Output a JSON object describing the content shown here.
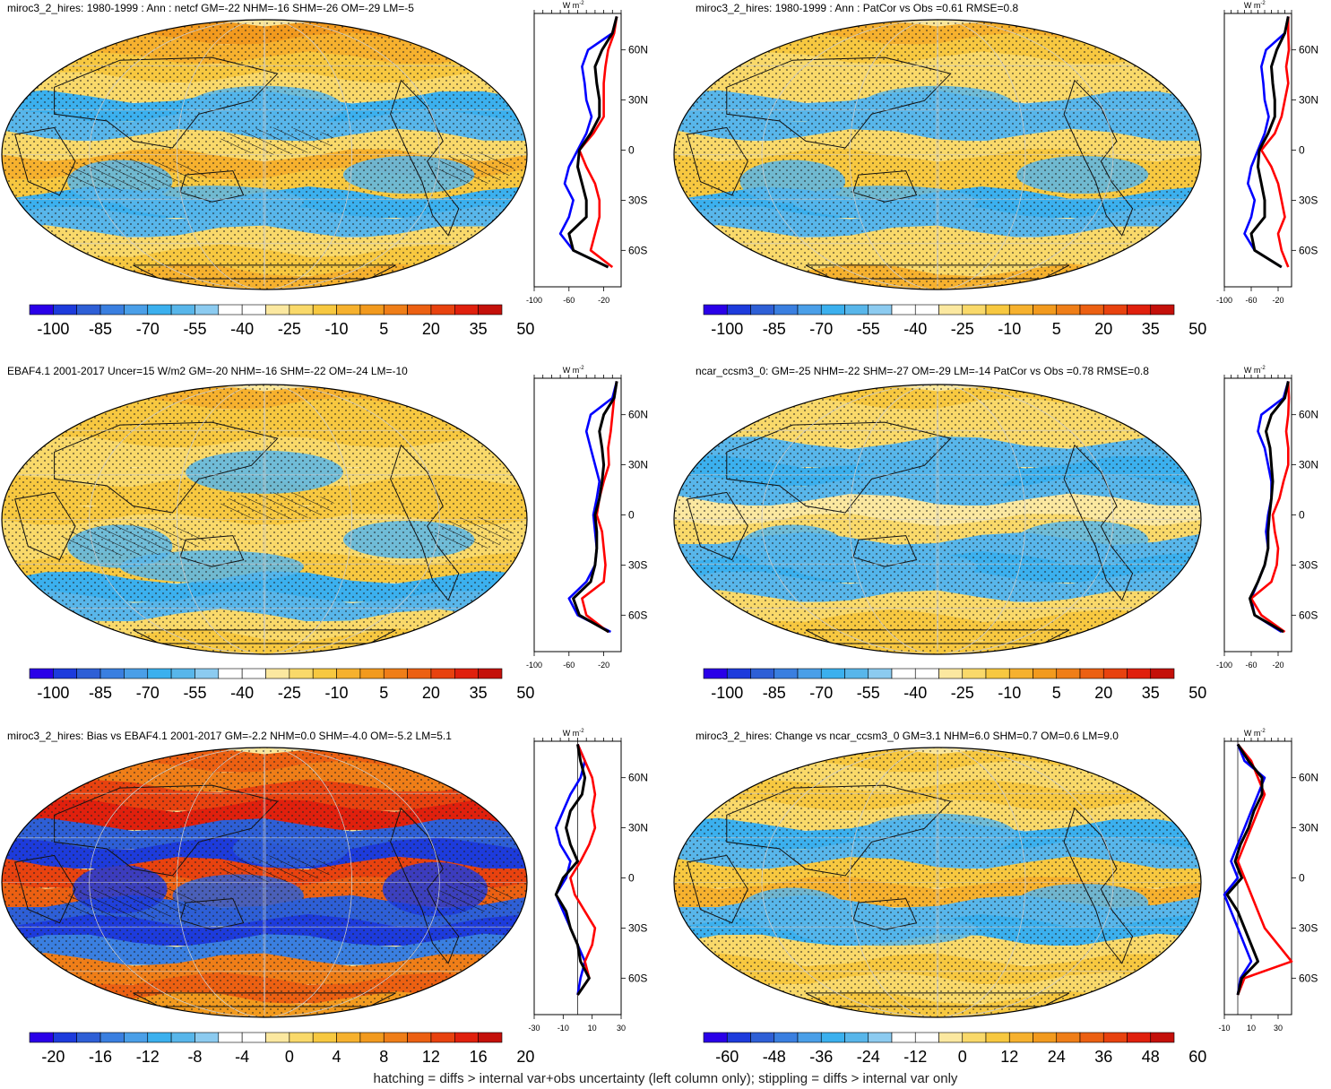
{
  "footer": "hatching = diffs > internal var+obs uncertainty (left column only); stippling = diffs > internal var only",
  "colors": {
    "scale": [
      "#2a00e8",
      "#1d3bdc",
      "#2e5fd6",
      "#3a7fe0",
      "#4a9fe8",
      "#3bb0ee",
      "#58b6ea",
      "#8ccbf0",
      "#ffffff",
      "#ffffff",
      "#fbe8a0",
      "#f9d96a",
      "#f7c840",
      "#f6b12e",
      "#f29a1e",
      "#ef7e18",
      "#ec6012",
      "#e8420f",
      "#e0200d",
      "#c4100a"
    ],
    "zonal_lines": {
      "model": "#ff0000",
      "obs": "#0000ff",
      "diff": "#000000"
    }
  },
  "chart_data": [
    {
      "type": "map_with_zonal_profile",
      "title": "miroc3_2_hires: 1980-1999 : Ann : netcf GM=-22 NHM=-16 SHM=-26 OM=-29 LM=-5",
      "colorbar_labels": [
        "-100",
        "-85",
        "-70",
        "-55",
        "-40",
        "-25",
        "-10",
        "5",
        "20",
        "35",
        "50"
      ],
      "zonal_units": "W m",
      "zonal_units_exp": "-2",
      "zonal_xlim": [
        -100,
        0
      ],
      "zonal_ticks": [
        "-100",
        "-60",
        "-20"
      ],
      "zonal_tick_values": [
        -100,
        -60,
        -20
      ],
      "lat_labels": [
        "60N",
        "30N",
        "0",
        "30S",
        "60S"
      ],
      "lat_values": [
        60,
        30,
        0,
        -30,
        -60
      ],
      "zonal": {
        "lat": [
          80,
          70,
          60,
          50,
          40,
          30,
          20,
          10,
          0,
          -10,
          -20,
          -30,
          -40,
          -50,
          -60,
          -70
        ],
        "model": [
          -5,
          -8,
          -15,
          -18,
          -20,
          -20,
          -20,
          -32,
          -48,
          -40,
          -30,
          -25,
          -25,
          -30,
          -35,
          -10
        ],
        "obs": [
          -5,
          -10,
          -38,
          -45,
          -42,
          -40,
          -34,
          -40,
          -50,
          -60,
          -65,
          -55,
          -60,
          -70,
          -55,
          -15
        ],
        "diff": [
          -5,
          -10,
          -22,
          -30,
          -28,
          -25,
          -25,
          -35,
          -48,
          -50,
          -45,
          -40,
          -40,
          -60,
          -55,
          -15
        ]
      }
    },
    {
      "type": "map_with_zonal_profile",
      "title": "miroc3_2_hires: 1980-1999 : Ann : PatCor vs Obs =0.61 RMSE=0.8",
      "colorbar_labels": [
        "-100",
        "-85",
        "-70",
        "-55",
        "-40",
        "-25",
        "-10",
        "5",
        "20",
        "35",
        "50"
      ],
      "zonal_units": "W m",
      "zonal_units_exp": "-2",
      "zonal_xlim": [
        -100,
        0
      ],
      "zonal_ticks": [
        "-100",
        "-60",
        "-20"
      ],
      "zonal_tick_values": [
        -100,
        -60,
        -20
      ],
      "lat_labels": [
        "60N",
        "30N",
        "0",
        "30S",
        "60S"
      ],
      "lat_values": [
        60,
        30,
        0,
        -30,
        -60
      ],
      "zonal": {
        "lat": [
          80,
          70,
          60,
          50,
          40,
          30,
          20,
          10,
          0,
          -10,
          -20,
          -30,
          -40,
          -50,
          -60,
          -70
        ],
        "model": [
          -5,
          -5,
          -4,
          -8,
          -5,
          -10,
          -15,
          -25,
          -45,
          -30,
          -20,
          -15,
          -10,
          -20,
          -15,
          -5
        ],
        "obs": [
          -5,
          -10,
          -38,
          -45,
          -42,
          -40,
          -34,
          -40,
          -50,
          -60,
          -65,
          -55,
          -60,
          -70,
          -55,
          -15
        ],
        "diff": [
          -5,
          -10,
          -22,
          -30,
          -28,
          -25,
          -25,
          -35,
          -48,
          -50,
          -45,
          -40,
          -40,
          -60,
          -55,
          -15
        ]
      }
    },
    {
      "type": "map_with_zonal_profile",
      "title": "EBAF4.1 2001-2017 Uncer=15 W/m2 GM=-20 NHM=-16 SHM=-22 OM=-24 LM=-10",
      "colorbar_labels": [
        "-100",
        "-85",
        "-70",
        "-55",
        "-40",
        "-25",
        "-10",
        "5",
        "20",
        "35",
        "50"
      ],
      "zonal_units": "W m",
      "zonal_units_exp": "-2",
      "zonal_xlim": [
        -100,
        0
      ],
      "zonal_ticks": [
        "-100",
        "-60",
        "-20"
      ],
      "zonal_tick_values": [
        -100,
        -60,
        -20
      ],
      "lat_labels": [
        "60N",
        "30N",
        "0",
        "30S",
        "60S"
      ],
      "lat_values": [
        60,
        30,
        0,
        -30,
        -60
      ],
      "zonal": {
        "lat": [
          80,
          70,
          60,
          50,
          40,
          30,
          20,
          10,
          0,
          -10,
          -20,
          -30,
          -40,
          -50,
          -60,
          -70
        ],
        "model": [
          -5,
          -8,
          -10,
          -12,
          -15,
          -14,
          -20,
          -25,
          -28,
          -22,
          -20,
          -18,
          -20,
          -45,
          -40,
          -15
        ],
        "obs": [
          -5,
          -10,
          -35,
          -40,
          -35,
          -30,
          -25,
          -28,
          -32,
          -30,
          -28,
          -30,
          -40,
          -60,
          -50,
          -12
        ],
        "diff": [
          -5,
          -8,
          -20,
          -25,
          -22,
          -20,
          -22,
          -25,
          -30,
          -28,
          -28,
          -30,
          -35,
          -55,
          -48,
          -14
        ]
      }
    },
    {
      "type": "map_with_zonal_profile",
      "title": "ncar_ccsm3_0: GM=-25 NHM=-22 SHM=-27 OM=-29 LM=-14 PatCor vs Obs =0.78 RMSE=0.8",
      "colorbar_labels": [
        "-100",
        "-85",
        "-70",
        "-55",
        "-40",
        "-25",
        "-10",
        "5",
        "20",
        "35",
        "50"
      ],
      "zonal_units": "W m",
      "zonal_units_exp": "-2",
      "zonal_xlim": [
        -100,
        0
      ],
      "zonal_ticks": [
        "-100",
        "-60",
        "-20"
      ],
      "zonal_tick_values": [
        -100,
        -60,
        -20
      ],
      "lat_labels": [
        "60N",
        "30N",
        "0",
        "30S",
        "60S"
      ],
      "lat_values": [
        60,
        30,
        0,
        -30,
        -60
      ],
      "zonal": {
        "lat": [
          80,
          70,
          60,
          50,
          40,
          30,
          20,
          10,
          0,
          -10,
          -20,
          -30,
          -40,
          -50,
          -60,
          -70
        ],
        "model": [
          -5,
          -4,
          -5,
          -8,
          -5,
          -5,
          -12,
          -18,
          -28,
          -25,
          -20,
          -22,
          -30,
          -60,
          -45,
          -10
        ],
        "obs": [
          -5,
          -12,
          -45,
          -50,
          -40,
          -35,
          -30,
          -30,
          -35,
          -38,
          -35,
          -40,
          -50,
          -60,
          -55,
          -15
        ],
        "diff": [
          -5,
          -10,
          -30,
          -38,
          -32,
          -30,
          -28,
          -30,
          -33,
          -35,
          -35,
          -40,
          -50,
          -62,
          -55,
          -12
        ]
      }
    },
    {
      "type": "map_with_zonal_profile",
      "title": "miroc3_2_hires: Bias vs EBAF4.1 2001-2017 GM=-2.2 NHM=0.0 SHM=-4.0 OM=-5.2 LM=5.1",
      "colorbar_labels": [
        "-20",
        "-16",
        "-12",
        "-8",
        "-4",
        "0",
        "4",
        "8",
        "12",
        "16",
        "20"
      ],
      "zonal_units": "W m",
      "zonal_units_exp": "-2",
      "zonal_xlim": [
        -30,
        30
      ],
      "zonal_ticks": [
        "-30",
        "-10",
        "10",
        "30"
      ],
      "zonal_tick_values": [
        -30,
        -10,
        10,
        30
      ],
      "lat_labels": [
        "60N",
        "30N",
        "0",
        "30S",
        "60S"
      ],
      "lat_values": [
        60,
        30,
        0,
        -30,
        -60
      ],
      "zonal": {
        "lat": [
          80,
          70,
          60,
          50,
          40,
          30,
          20,
          10,
          0,
          -10,
          -20,
          -30,
          -40,
          -50,
          -60,
          -70
        ],
        "model": [
          0,
          5,
          10,
          12,
          10,
          12,
          8,
          2,
          -5,
          -2,
          5,
          12,
          10,
          5,
          8,
          0
        ],
        "obs": [
          0,
          5,
          2,
          -5,
          -10,
          -15,
          -12,
          -5,
          -8,
          -15,
          -10,
          -5,
          0,
          5,
          2,
          0
        ],
        "diff": [
          0,
          2,
          5,
          3,
          -5,
          -8,
          -5,
          0,
          -10,
          -15,
          -8,
          -5,
          0,
          2,
          8,
          0
        ]
      }
    },
    {
      "type": "map_with_zonal_profile",
      "title": "miroc3_2_hires: Change vs ncar_ccsm3_0 GM=3.1 NHM=6.0 SHM=0.7 OM=0.6 LM=9.0",
      "colorbar_labels": [
        "-60",
        "-48",
        "-36",
        "-24",
        "-12",
        "0",
        "12",
        "24",
        "36",
        "48",
        "60"
      ],
      "zonal_units": "W m",
      "zonal_units_exp": "-2",
      "zonal_xlim": [
        -10,
        40
      ],
      "zonal_ticks": [
        "-10",
        "10",
        "30"
      ],
      "zonal_tick_values": [
        -10,
        10,
        30
      ],
      "lat_labels": [
        "60N",
        "30N",
        "0",
        "30S",
        "60S"
      ],
      "lat_values": [
        60,
        30,
        0,
        -30,
        -60
      ],
      "zonal": {
        "lat": [
          80,
          70,
          60,
          50,
          40,
          30,
          20,
          10,
          0,
          -10,
          -20,
          -30,
          -40,
          -50,
          -60,
          -70
        ],
        "model": [
          0,
          10,
          15,
          20,
          15,
          10,
          5,
          0,
          5,
          10,
          15,
          20,
          30,
          40,
          5,
          0
        ],
        "obs": [
          0,
          5,
          20,
          15,
          10,
          5,
          0,
          -5,
          0,
          -10,
          -5,
          0,
          5,
          10,
          2,
          0
        ],
        "diff": [
          0,
          8,
          18,
          18,
          12,
          8,
          2,
          -2,
          3,
          -8,
          0,
          5,
          10,
          15,
          3,
          0
        ]
      }
    }
  ]
}
